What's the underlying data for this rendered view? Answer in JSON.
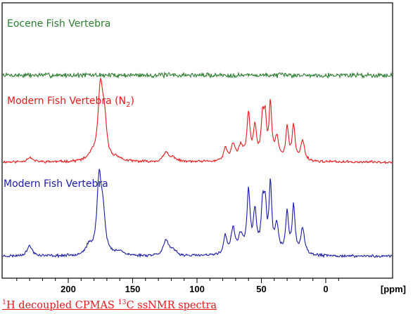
{
  "chart_data": {
    "type": "line",
    "x_unit_label": "[ppm]",
    "xlim": [
      240,
      -10
    ],
    "x_reversed": true,
    "x_ticks": [
      200,
      150,
      100,
      50,
      0
    ],
    "grid": false,
    "series": [
      {
        "name": "Eocene Fish Vertebra",
        "label_main": "Eocene Fish Vertebra",
        "label_sub": "",
        "label_suffix": "",
        "color": "#2e7d32",
        "baseline": 1.0,
        "noise": 0.45,
        "seed": 7,
        "peaks": []
      },
      {
        "name": "Modern Fish Vertebra (N2)",
        "label_main": "Modern Fish Vertebra (N",
        "label_sub": "2",
        "label_suffix": ")",
        "color": "#e31a1c",
        "baseline": 0.6,
        "noise": 0.12,
        "seed": 11,
        "peaks": [
          [
            230,
            0.55,
            2.5
          ],
          [
            182,
            0.6,
            3
          ],
          [
            175,
            8.5,
            2.2
          ],
          [
            172,
            4.2,
            2.0
          ],
          [
            162,
            0.4,
            3
          ],
          [
            124,
            1.1,
            2.5
          ],
          [
            118,
            0.45,
            2.5
          ],
          [
            78,
            1.5,
            1.6
          ],
          [
            72,
            1.9,
            1.8
          ],
          [
            66,
            1.6,
            2.4
          ],
          [
            60,
            5.4,
            1.4
          ],
          [
            55,
            3.8,
            1.5
          ],
          [
            49,
            4.8,
            1.4
          ],
          [
            47,
            4.1,
            1.2
          ],
          [
            43,
            6.5,
            1.2
          ],
          [
            38,
            2.6,
            1.8
          ],
          [
            30,
            4.0,
            1.3
          ],
          [
            25,
            4.1,
            1.3
          ],
          [
            18,
            2.4,
            1.8
          ]
        ]
      },
      {
        "name": "Modern Fish Vertebra",
        "label_main": "Modern Fish Vertebra",
        "label_sub": "",
        "label_suffix": "",
        "color": "#1a1aa8",
        "baseline": 0.4,
        "noise": 0.12,
        "seed": 23,
        "peaks": [
          [
            230,
            1.1,
            2.5
          ],
          [
            184,
            0.9,
            3
          ],
          [
            176,
            8.2,
            2.0
          ],
          [
            173,
            4.0,
            2.0
          ],
          [
            160,
            0.5,
            3
          ],
          [
            124,
            1.7,
            2.6
          ],
          [
            118,
            0.5,
            2.5
          ],
          [
            78,
            2.0,
            1.6
          ],
          [
            72,
            2.7,
            1.8
          ],
          [
            66,
            1.9,
            2.4
          ],
          [
            60,
            6.7,
            1.4
          ],
          [
            55,
            4.5,
            1.5
          ],
          [
            49,
            5.1,
            1.4
          ],
          [
            47,
            4.4,
            1.2
          ],
          [
            43,
            7.5,
            1.2
          ],
          [
            38,
            3.0,
            1.8
          ],
          [
            30,
            4.6,
            1.3
          ],
          [
            25,
            5.2,
            1.3
          ],
          [
            18,
            2.8,
            1.8
          ]
        ]
      }
    ]
  },
  "caption": {
    "iso_1": "1",
    "text_1": "H decoupled CPMAS ",
    "iso_2": "13",
    "text_2": "C ssNMR spectra"
  }
}
